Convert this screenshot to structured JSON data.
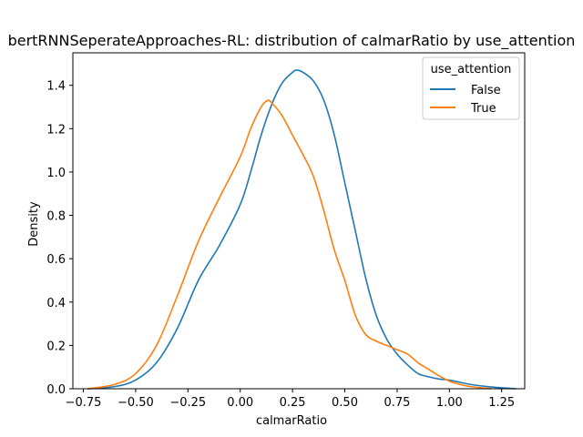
{
  "chart_data": {
    "type": "line",
    "title": "bertRNNSeperateApproaches-RL: distribution of calmarRatio by use_attention",
    "xlabel": "calmarRatio",
    "ylabel": "Density",
    "xlim": [
      -0.8,
      1.36
    ],
    "ylim": [
      0.0,
      1.55
    ],
    "xticks": [
      -0.75,
      -0.5,
      -0.25,
      0.0,
      0.25,
      0.5,
      0.75,
      1.0,
      1.25
    ],
    "xtick_labels": [
      "−0.75",
      "−0.50",
      "−0.25",
      "0.00",
      "0.25",
      "0.50",
      "0.75",
      "1.00",
      "1.25"
    ],
    "yticks": [
      0.0,
      0.2,
      0.4,
      0.6,
      0.8,
      1.0,
      1.2,
      1.4
    ],
    "ytick_labels": [
      "0.0",
      "0.2",
      "0.4",
      "0.6",
      "0.8",
      "1.0",
      "1.2",
      "1.4"
    ],
    "grid": false,
    "legend": {
      "title": "use_attention",
      "placement": "top-right"
    },
    "series": [
      {
        "name": "False",
        "color": "#1f77b4",
        "x": [
          -0.73,
          -0.6,
          -0.5,
          -0.4,
          -0.3,
          -0.2,
          -0.1,
          0.0,
          0.05,
          0.1,
          0.15,
          0.2,
          0.25,
          0.27,
          0.3,
          0.35,
          0.4,
          0.45,
          0.5,
          0.55,
          0.6,
          0.65,
          0.7,
          0.75,
          0.8,
          0.85,
          0.9,
          0.95,
          1.0,
          1.05,
          1.1,
          1.2,
          1.32
        ],
        "y": [
          0.0,
          0.01,
          0.04,
          0.12,
          0.28,
          0.5,
          0.66,
          0.85,
          1.0,
          1.17,
          1.31,
          1.41,
          1.46,
          1.47,
          1.46,
          1.42,
          1.33,
          1.17,
          0.95,
          0.73,
          0.51,
          0.34,
          0.23,
          0.16,
          0.11,
          0.07,
          0.055,
          0.045,
          0.04,
          0.03,
          0.02,
          0.008,
          0.0
        ]
      },
      {
        "name": "True",
        "color": "#ff7f0e",
        "x": [
          -0.73,
          -0.6,
          -0.5,
          -0.4,
          -0.3,
          -0.2,
          -0.1,
          0.0,
          0.05,
          0.1,
          0.13,
          0.15,
          0.2,
          0.25,
          0.3,
          0.35,
          0.4,
          0.45,
          0.5,
          0.55,
          0.6,
          0.65,
          0.7,
          0.75,
          0.8,
          0.85,
          0.9,
          0.95,
          1.0,
          1.05,
          1.1,
          1.2
        ],
        "y": [
          0.0,
          0.02,
          0.07,
          0.2,
          0.43,
          0.68,
          0.88,
          1.07,
          1.2,
          1.3,
          1.33,
          1.32,
          1.26,
          1.17,
          1.08,
          0.98,
          0.82,
          0.64,
          0.5,
          0.34,
          0.25,
          0.22,
          0.2,
          0.18,
          0.16,
          0.12,
          0.09,
          0.06,
          0.035,
          0.02,
          0.01,
          0.0
        ]
      }
    ]
  }
}
